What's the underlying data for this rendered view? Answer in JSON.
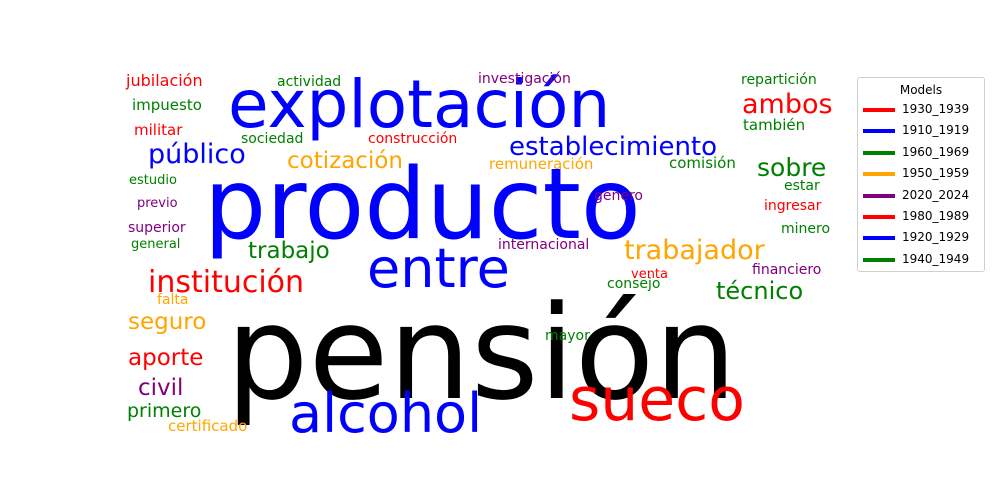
{
  "chart_data": {
    "type": "wordcloud",
    "title": "",
    "words": [
      {
        "text": "pensión",
        "color": "#000000",
        "group": "unknown"
      },
      {
        "text": "producto",
        "color": "#0000ff",
        "group": "blue"
      },
      {
        "text": "explotación",
        "color": "#0000ff",
        "group": "blue"
      },
      {
        "text": "entre",
        "color": "#0000ff",
        "group": "blue"
      },
      {
        "text": "sueco",
        "color": "#ff0000",
        "group": "red"
      },
      {
        "text": "alcohol",
        "color": "#0000ff",
        "group": "blue"
      },
      {
        "text": "institución",
        "color": "#ff0000",
        "group": "red"
      },
      {
        "text": "trabajador",
        "color": "#ffa500",
        "group": "orange"
      },
      {
        "text": "establecimiento",
        "color": "#0000ff",
        "group": "blue"
      },
      {
        "text": "ambos",
        "color": "#ff0000",
        "group": "red"
      },
      {
        "text": "público",
        "color": "#0000ff",
        "group": "blue"
      },
      {
        "text": "cotización",
        "color": "#ffa500",
        "group": "orange"
      },
      {
        "text": "sobre",
        "color": "#008000",
        "group": "green"
      },
      {
        "text": "trabajo",
        "color": "#008000",
        "group": "green"
      },
      {
        "text": "técnico",
        "color": "#008000",
        "group": "green"
      },
      {
        "text": "seguro",
        "color": "#ffa500",
        "group": "orange"
      },
      {
        "text": "aporte",
        "color": "#ff0000",
        "group": "red"
      },
      {
        "text": "civil",
        "color": "#800080",
        "group": "purple"
      },
      {
        "text": "primero",
        "color": "#008000",
        "group": "green"
      },
      {
        "text": "certificado",
        "color": "#ffa500",
        "group": "orange"
      },
      {
        "text": "jubilación",
        "color": "#ff0000",
        "group": "red"
      },
      {
        "text": "impuesto",
        "color": "#008000",
        "group": "green"
      },
      {
        "text": "militar",
        "color": "#ff0000",
        "group": "red"
      },
      {
        "text": "actividad",
        "color": "#008000",
        "group": "green"
      },
      {
        "text": "sociedad",
        "color": "#008000",
        "group": "green"
      },
      {
        "text": "investigación",
        "color": "#800080",
        "group": "purple"
      },
      {
        "text": "construcción",
        "color": "#ff0000",
        "group": "red"
      },
      {
        "text": "remuneración",
        "color": "#ffa500",
        "group": "orange"
      },
      {
        "text": "repartición",
        "color": "#008000",
        "group": "green"
      },
      {
        "text": "también",
        "color": "#008000",
        "group": "green"
      },
      {
        "text": "comisión",
        "color": "#008000",
        "group": "green"
      },
      {
        "text": "estar",
        "color": "#008000",
        "group": "green"
      },
      {
        "text": "estudio",
        "color": "#008000",
        "group": "green"
      },
      {
        "text": "previo",
        "color": "#800080",
        "group": "purple"
      },
      {
        "text": "superior",
        "color": "#800080",
        "group": "purple"
      },
      {
        "text": "general",
        "color": "#008000",
        "group": "green"
      },
      {
        "text": "género",
        "color": "#800080",
        "group": "purple"
      },
      {
        "text": "ingresar",
        "color": "#ff0000",
        "group": "red"
      },
      {
        "text": "minero",
        "color": "#008000",
        "group": "green"
      },
      {
        "text": "internacional",
        "color": "#800080",
        "group": "purple"
      },
      {
        "text": "financiero",
        "color": "#800080",
        "group": "purple"
      },
      {
        "text": "venta",
        "color": "#ff0000",
        "group": "red"
      },
      {
        "text": "consejo",
        "color": "#008000",
        "group": "green"
      },
      {
        "text": "falta",
        "color": "#ffa500",
        "group": "orange"
      },
      {
        "text": "mayor",
        "color": "#008000",
        "group": "green"
      }
    ],
    "legend": {
      "title": "Models",
      "placement": "right",
      "entries": [
        {
          "label": "1930_1939",
          "color": "#ff0000"
        },
        {
          "label": "1910_1919",
          "color": "#0000ff"
        },
        {
          "label": "1960_1969",
          "color": "#008000"
        },
        {
          "label": "1950_1959",
          "color": "#ffa500"
        },
        {
          "label": "2020_2024",
          "color": "#800080"
        },
        {
          "label": "1980_1989",
          "color": "#ff0000"
        },
        {
          "label": "1920_1929",
          "color": "#0000ff"
        },
        {
          "label": "1940_1949",
          "color": "#008000"
        }
      ]
    }
  }
}
